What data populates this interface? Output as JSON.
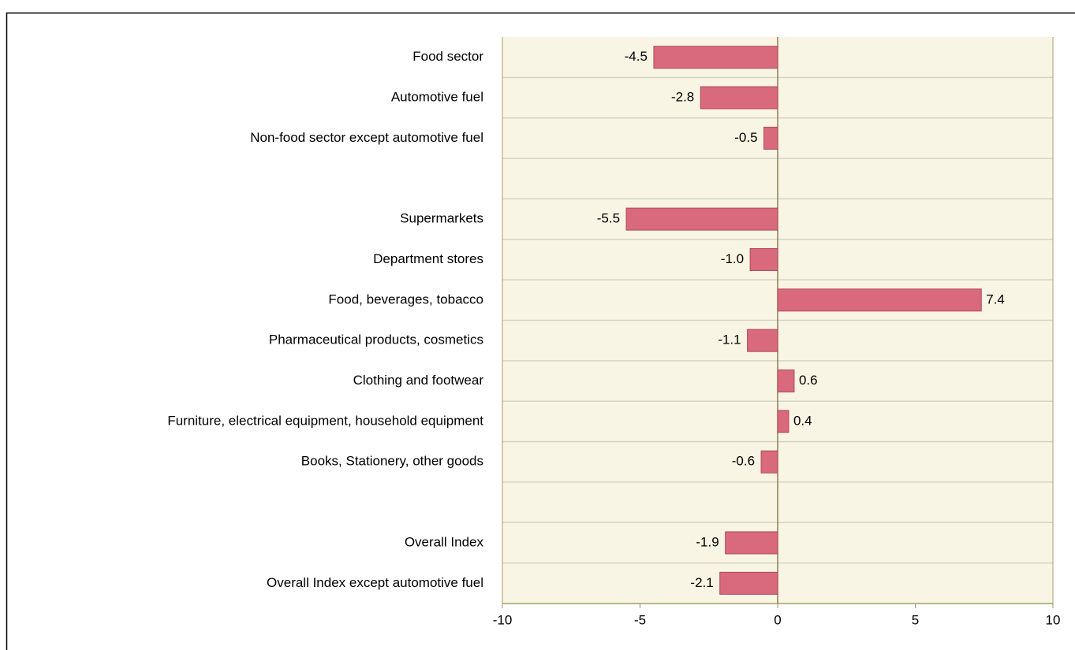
{
  "chart_data": {
    "type": "hbar",
    "categories": [
      "Food sector",
      "Automotive fuel",
      "Non-food sector except automotive fuel",
      null,
      "Supermarkets",
      "Department stores",
      "Food, beverages, tobacco",
      "Pharmaceutical products, cosmetics",
      "Clothing and footwear",
      "Furniture, electrical equipment, household equipment",
      "Books, Stationery, other goods",
      null,
      "Overall  Index",
      "Overall Index except automotive fuel"
    ],
    "values": [
      -4.5,
      -2.8,
      -0.5,
      null,
      -5.5,
      -1.0,
      7.4,
      -1.1,
      0.6,
      0.4,
      -0.6,
      null,
      -1.9,
      -2.1
    ],
    "value_labels": [
      "-4.5",
      "-2.8",
      "-0.5",
      null,
      "-5.5",
      "-1.0",
      "7.4",
      "-1.1",
      "0.6",
      "0.4",
      "-0.6",
      null,
      "-1.9",
      "-2.1"
    ],
    "color": "#d9697c",
    "xlim": [
      -10,
      10
    ],
    "xticks": [
      -10,
      -5,
      0,
      5,
      10
    ],
    "grid": true
  }
}
